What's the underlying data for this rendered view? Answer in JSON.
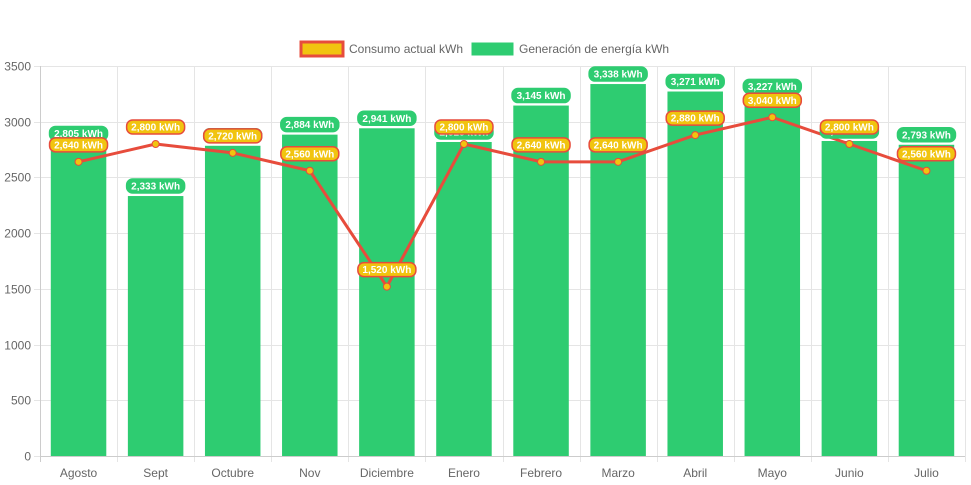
{
  "chart_data": {
    "type": "bar",
    "title": "",
    "xlabel": "",
    "ylabel": "",
    "ylim": [
      0,
      3500
    ],
    "yticks": [
      0,
      500,
      1000,
      1500,
      2000,
      2500,
      3000,
      3500
    ],
    "grid": true,
    "legend_position": "top-center",
    "value_suffix": " kWh",
    "categories": [
      "Agosto",
      "Sept",
      "Octubre",
      "Nov",
      "Diciembre",
      "Enero",
      "Febrero",
      "Marzo",
      "Abril",
      "Mayo",
      "Junio",
      "Julio"
    ],
    "series": [
      {
        "name": "Consumo actual kWh",
        "type": "line",
        "color": "#e74c3c",
        "fill": "#f1c40f",
        "values": [
          2640,
          2800,
          2720,
          2560,
          1520,
          2800,
          2640,
          2640,
          2880,
          3040,
          2800,
          2560
        ],
        "labels": [
          "2,640 kWh",
          "2,800 kWh",
          "2,720 kWh",
          "2,560 kWh",
          "1,520 kWh",
          "2,800 kWh",
          "2,640 kWh",
          "2,640 kWh",
          "2,880 kWh",
          "3,040 kWh",
          "2,800 kWh",
          "2,560 kWh"
        ]
      },
      {
        "name": "Generación de energía kWh",
        "type": "bar",
        "color": "#2ecc71",
        "values": [
          2805,
          2333,
          2784,
          2884,
          2941,
          2818,
          3145,
          3338,
          3271,
          3227,
          2827,
          2793
        ],
        "labels": [
          "2,805 kWh",
          "2,333 kWh",
          "2,784 kWh",
          "2,884 kWh",
          "2,941 kWh",
          "2,818 kWh",
          "3,145 kWh",
          "3,338 kWh",
          "3,271 kWh",
          "3,227 kWh",
          "2,827 kWh",
          "2,793 kWh"
        ]
      }
    ]
  }
}
